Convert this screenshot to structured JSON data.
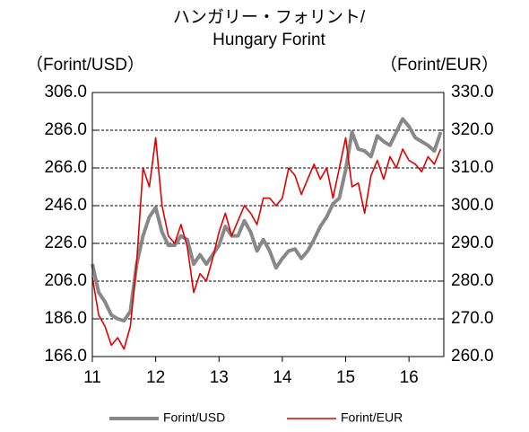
{
  "chart_data": {
    "type": "line",
    "title": [
      "ハンガリー・フォリント/",
      "Hungary Forint"
    ],
    "y_label": "（Forint/USD）",
    "y2_label": "（Forint/EUR）",
    "x": [
      11.0,
      11.1,
      11.2,
      11.3,
      11.4,
      11.5,
      11.6,
      11.7,
      11.8,
      11.9,
      12.0,
      12.1,
      12.2,
      12.3,
      12.4,
      12.5,
      12.6,
      12.7,
      12.8,
      12.9,
      13.0,
      13.1,
      13.2,
      13.3,
      13.4,
      13.5,
      13.6,
      13.7,
      13.8,
      13.9,
      14.0,
      14.1,
      14.2,
      14.3,
      14.4,
      14.5,
      14.6,
      14.7,
      14.8,
      14.9,
      15.0,
      15.1,
      15.2,
      15.3,
      15.4,
      15.5,
      15.6,
      15.7,
      15.8,
      15.9,
      16.0,
      16.1,
      16.2,
      16.3,
      16.4,
      16.5
    ],
    "series": [
      {
        "name": "Forint/USD",
        "color": "#888888",
        "values": [
          215,
          200,
          195,
          188,
          186,
          185,
          190,
          215,
          230,
          240,
          245,
          232,
          225,
          225,
          230,
          228,
          215,
          220,
          215,
          220,
          225,
          235,
          230,
          230,
          238,
          232,
          222,
          228,
          222,
          213,
          218,
          222,
          223,
          218,
          222,
          228,
          235,
          240,
          247,
          250,
          265,
          285,
          276,
          275,
          272,
          283,
          280,
          278,
          285,
          292,
          288,
          282,
          280,
          278,
          275,
          285
        ]
      },
      {
        "name": "Forint/EUR",
        "color": "#e00000",
        "axis": "y2",
        "values": [
          281,
          271,
          268,
          263,
          265,
          262,
          268,
          285,
          310,
          305,
          318,
          300,
          292,
          290,
          295,
          289,
          277,
          282,
          280,
          286,
          293,
          298,
          292,
          296,
          300,
          298,
          295,
          302,
          302,
          300,
          302,
          310,
          308,
          303,
          307,
          311,
          307,
          310,
          302,
          310,
          318,
          305,
          306,
          298,
          308,
          312,
          307,
          313,
          310,
          315,
          312,
          311,
          309,
          313,
          311,
          315
        ]
      }
    ],
    "xlim": [
      11,
      16.55
    ],
    "xticks": [
      11,
      12,
      13,
      14,
      15,
      16
    ],
    "ylim": [
      166,
      306
    ],
    "yticks": [
      {
        "value": 166,
        "label": "166.0"
      },
      {
        "value": 186,
        "label": "186.0"
      },
      {
        "value": 206,
        "label": "206.0"
      },
      {
        "value": 226,
        "label": "226.0"
      },
      {
        "value": 246,
        "label": "246.0"
      },
      {
        "value": 266,
        "label": "266.0"
      },
      {
        "value": 286,
        "label": "286.0"
      },
      {
        "value": 306,
        "label": "306.0"
      }
    ],
    "y2lim": [
      260,
      330
    ],
    "y2ticks": [
      {
        "value": 260,
        "label": "260.0"
      },
      {
        "value": 270,
        "label": "270.0"
      },
      {
        "value": 280,
        "label": "280.0"
      },
      {
        "value": 290,
        "label": "290.0"
      },
      {
        "value": 300,
        "label": "300.0"
      },
      {
        "value": 310,
        "label": "310.0"
      },
      {
        "value": 320,
        "label": "320.0"
      },
      {
        "value": 330,
        "label": "330.0"
      }
    ],
    "grid": true,
    "legend": "bottom"
  }
}
